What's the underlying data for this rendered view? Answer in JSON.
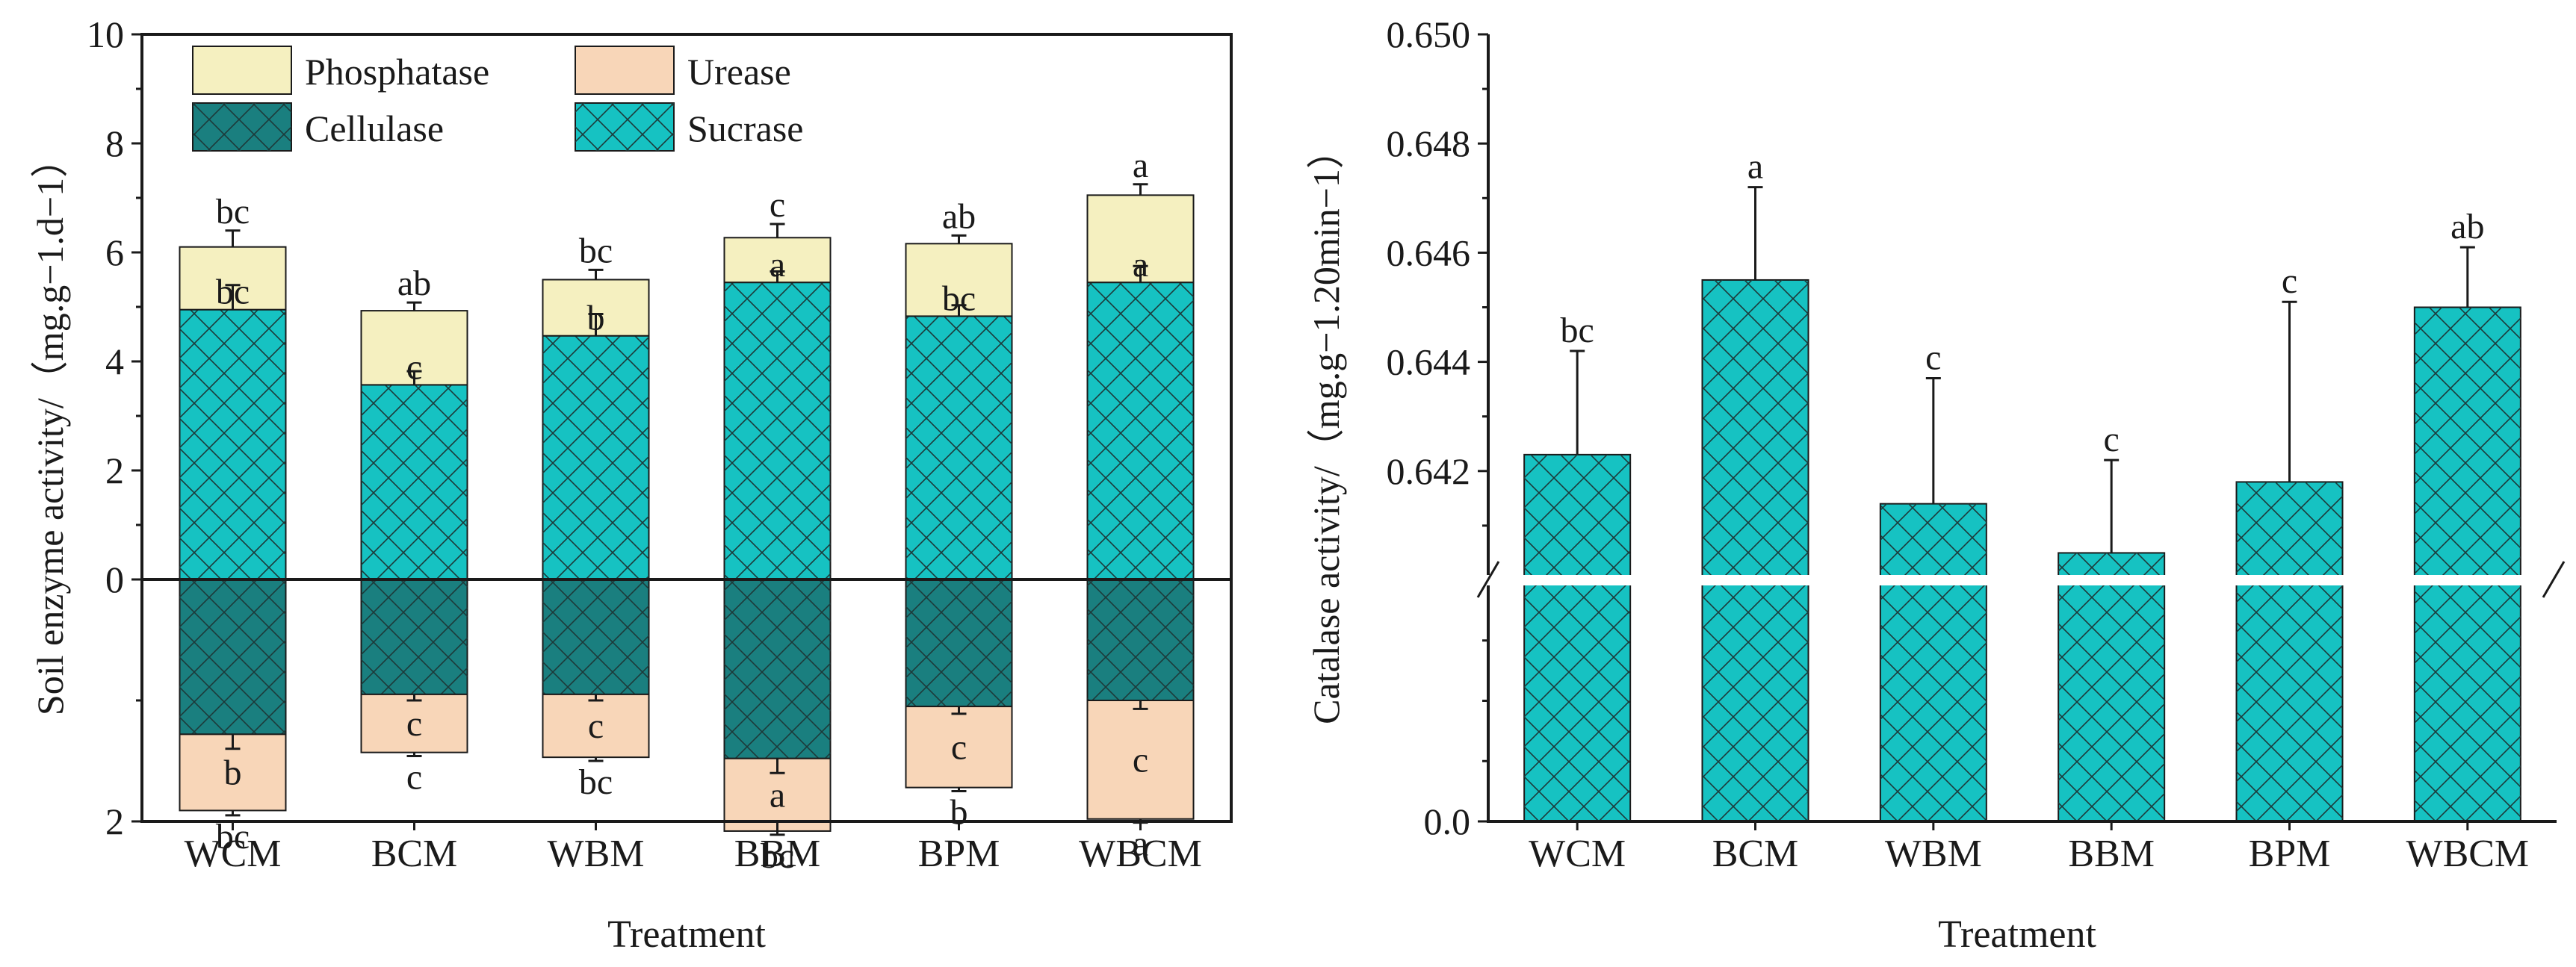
{
  "colors": {
    "phosphatase": "#f5f0c0",
    "urease": "#f8d6b8",
    "cellulase": "#1a7f7f",
    "sucrase": "#16c2c2",
    "axis": "#1a1a1a",
    "hatch": "#1c3a3a"
  },
  "chart_data": [
    {
      "type": "bar",
      "subtype": "stacked-diverging",
      "title": "",
      "xlabel": "Treatment",
      "ylabel": "Soil enzyme activity/（mg.g−1.d−1）",
      "categories": [
        "WCM",
        "BCM",
        "WBM",
        "BBM",
        "BPM",
        "WBCM"
      ],
      "ylim": [
        -2,
        10
      ],
      "yticks": [
        {
          "value": 10,
          "label": "10"
        },
        {
          "value": 8,
          "label": "8"
        },
        {
          "value": 6,
          "label": "6"
        },
        {
          "value": 4,
          "label": "4"
        },
        {
          "value": 2,
          "label": "2"
        },
        {
          "value": 0,
          "label": "0"
        },
        {
          "value": -2,
          "label": "2"
        }
      ],
      "legend_position": "top-left",
      "legend": [
        {
          "name": "Phosphatase",
          "key": "phosphatase",
          "hatched": false
        },
        {
          "name": "Urease",
          "key": "urease",
          "hatched": false
        },
        {
          "name": "Cellulase",
          "key": "cellulase",
          "hatched": true
        },
        {
          "name": "Sucrase",
          "key": "sucrase",
          "hatched": true
        }
      ],
      "series": [
        {
          "name": "Sucrase",
          "direction": "up",
          "values": [
            4.95,
            3.57,
            4.47,
            5.45,
            4.83,
            5.45
          ],
          "errors": [
            0.45,
            0.25,
            0.4,
            0.2,
            0.2,
            0.3
          ],
          "labels": [
            "bc",
            "c",
            "b",
            "a",
            "bc",
            "a"
          ]
        },
        {
          "name": "Phosphatase",
          "direction": "up",
          "values": [
            1.15,
            1.36,
            1.03,
            0.82,
            1.33,
            1.6
          ],
          "errors": [
            0.3,
            0.15,
            0.18,
            0.25,
            0.15,
            0.2
          ],
          "labels": [
            "bc",
            "ab",
            "bc",
            "c",
            "ab",
            "a"
          ]
        },
        {
          "name": "Cellulase",
          "direction": "down",
          "values": [
            1.28,
            0.95,
            0.95,
            1.48,
            1.05,
            1.0
          ],
          "errors": [
            0.12,
            0.05,
            0.05,
            0.12,
            0.06,
            0.07
          ],
          "labels": [
            "b",
            "c",
            "c",
            "a",
            "c",
            "c"
          ]
        },
        {
          "name": "Urease",
          "direction": "down",
          "values": [
            0.63,
            0.48,
            0.52,
            0.6,
            0.67,
            0.98
          ],
          "errors": [
            0.04,
            0.03,
            0.03,
            0.03,
            0.03,
            0.03
          ],
          "labels": [
            "bc",
            "c",
            "bc",
            "bc",
            "b",
            "a"
          ]
        }
      ]
    },
    {
      "type": "bar",
      "subtype": "broken-axis",
      "title": "",
      "xlabel": "Treatment",
      "ylabel": "Catalase activity/（mg.g−1.20min−1）",
      "categories": [
        "WCM",
        "BCM",
        "WBM",
        "BBM",
        "BPM",
        "WBCM"
      ],
      "ylim_upper": [
        0.64,
        0.65
      ],
      "ylim_lower": [
        0.0,
        0.64
      ],
      "yticks": [
        {
          "value": 0.65,
          "label": "0.650"
        },
        {
          "value": 0.648,
          "label": "0.648"
        },
        {
          "value": 0.646,
          "label": "0.646"
        },
        {
          "value": 0.644,
          "label": "0.644"
        },
        {
          "value": 0.642,
          "label": "0.642"
        },
        {
          "value": 0.0,
          "label": "0.0"
        }
      ],
      "series": [
        {
          "name": "Catalase",
          "values": [
            0.6423,
            0.6455,
            0.6414,
            0.6405,
            0.6418,
            0.645
          ],
          "errors": [
            0.0019,
            0.0017,
            0.0023,
            0.0017,
            0.0033,
            0.0011
          ],
          "labels": [
            "bc",
            "a",
            "c",
            "c",
            "c",
            "ab"
          ]
        }
      ]
    }
  ]
}
